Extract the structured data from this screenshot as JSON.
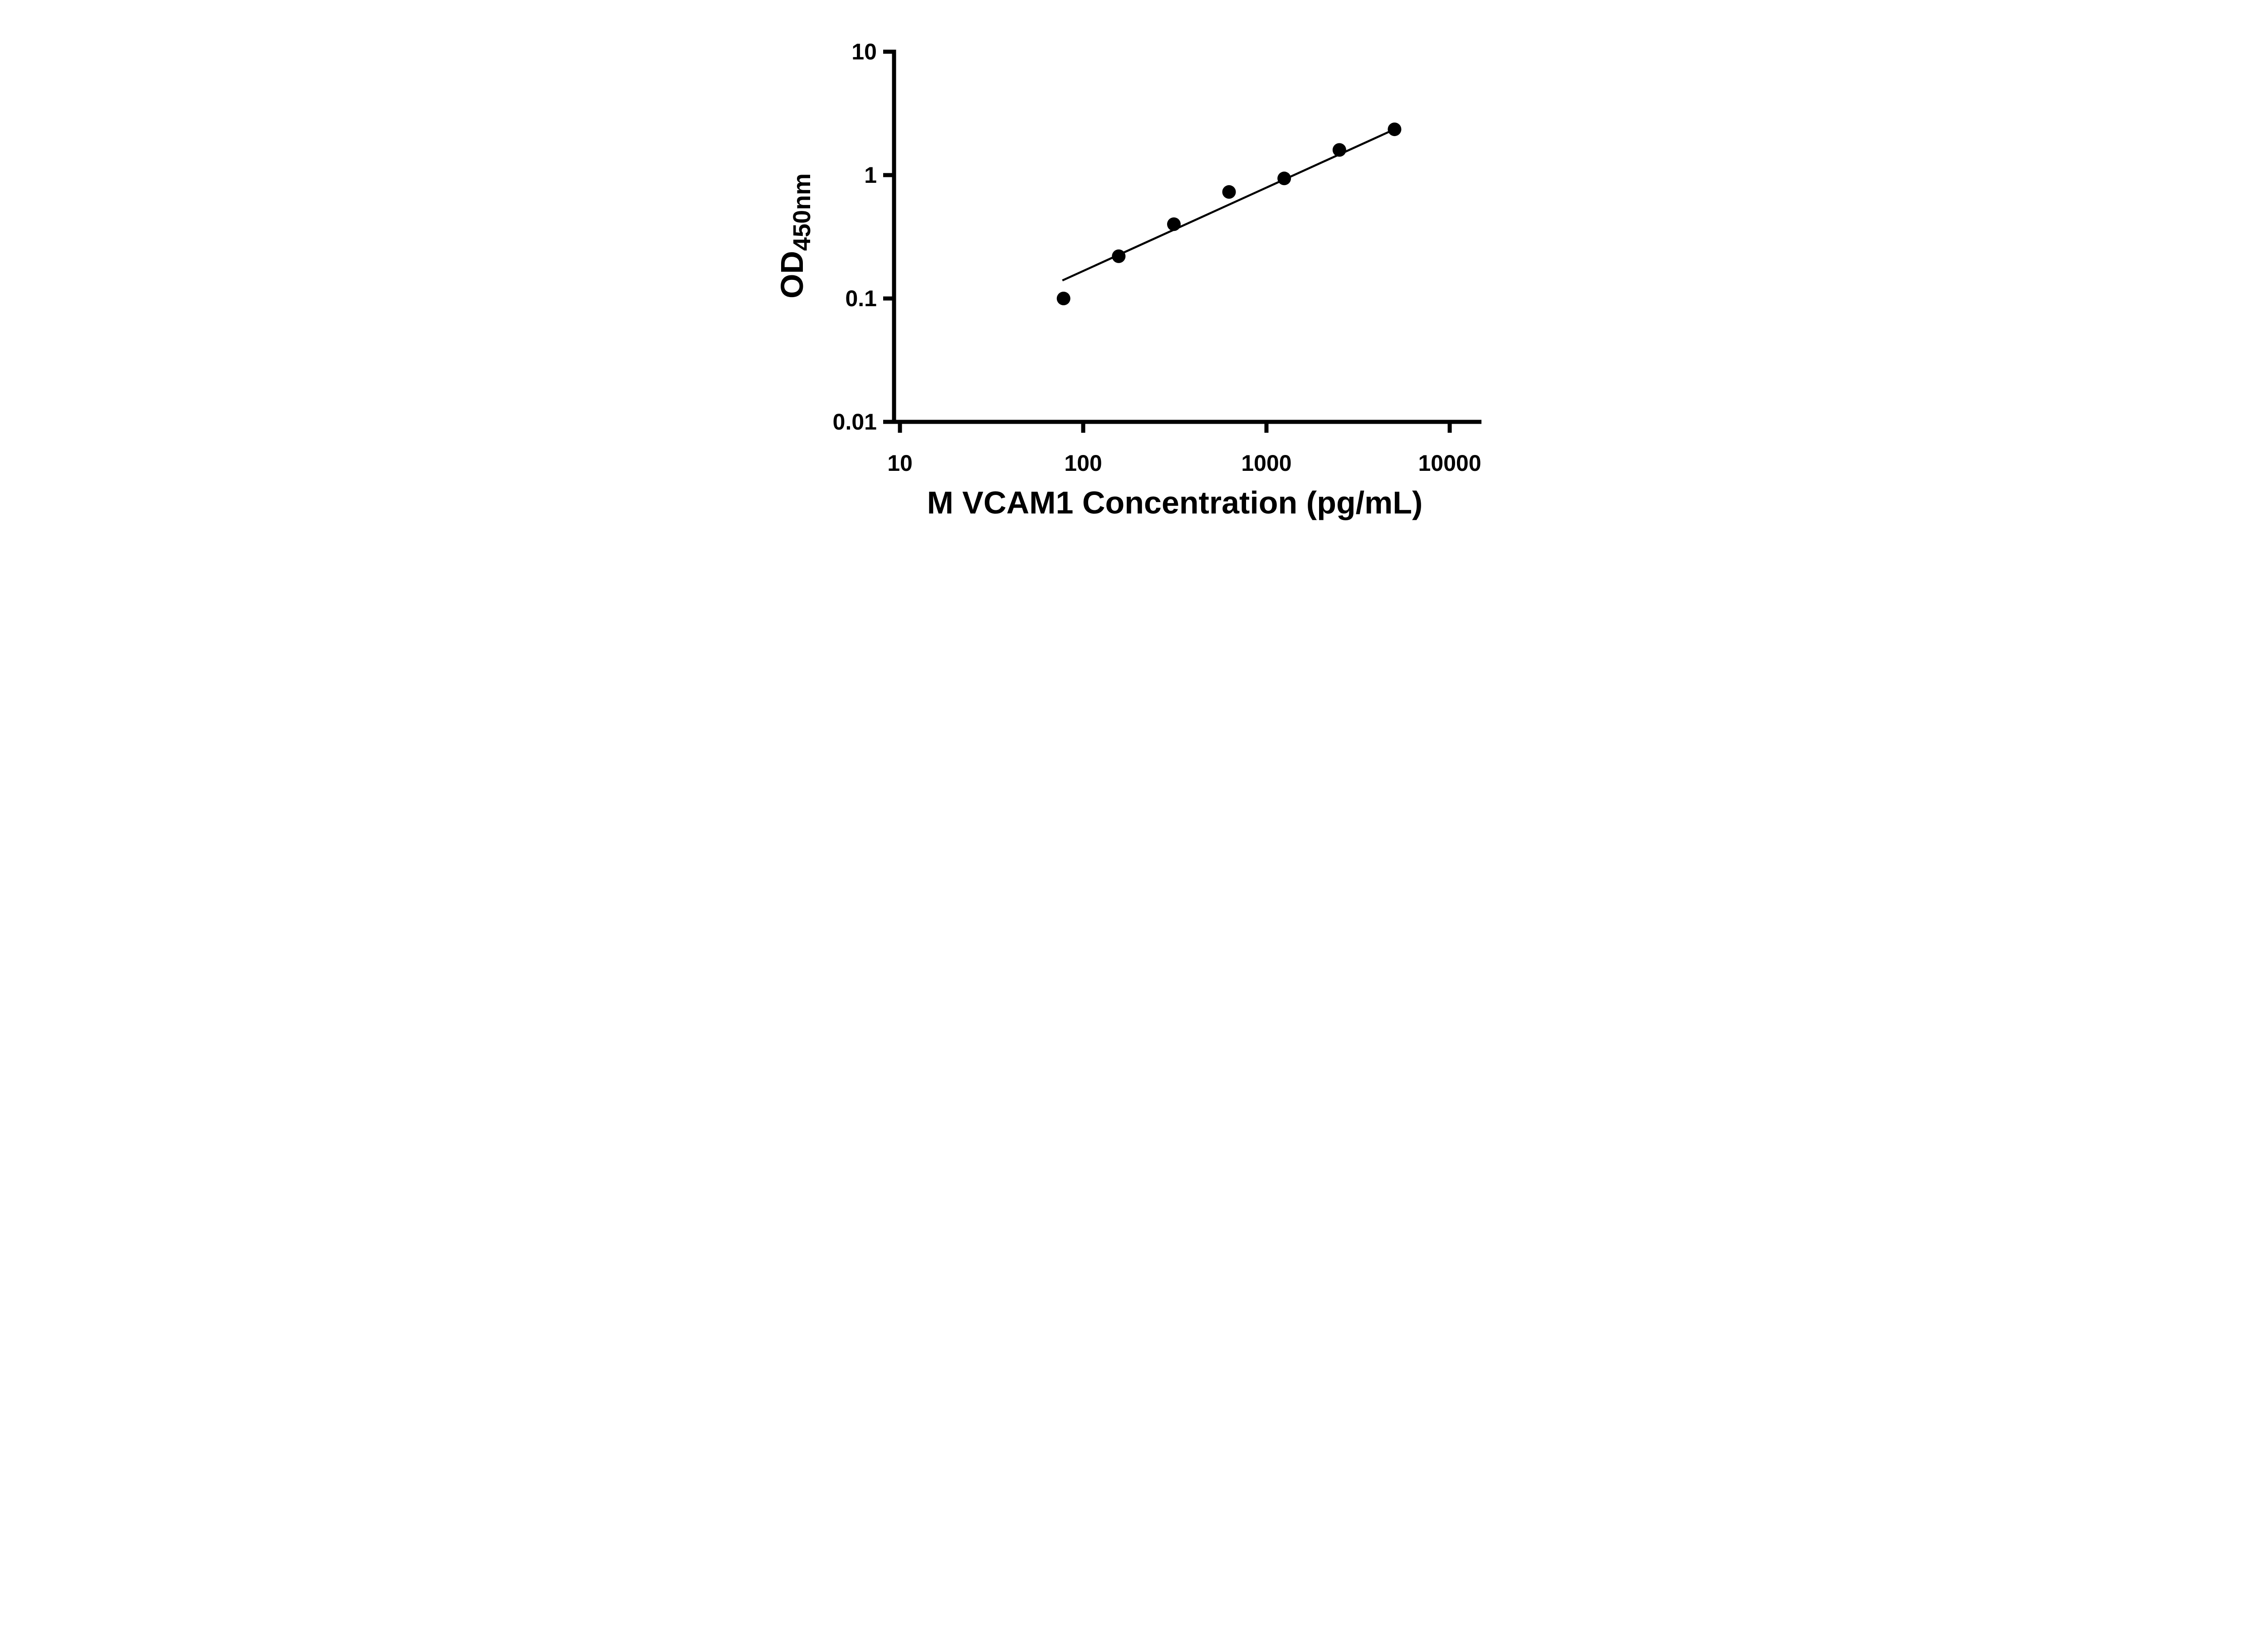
{
  "figure": {
    "background_color": "#ffffff",
    "foreground_color": "#000000"
  },
  "chart_data": {
    "type": "scatter",
    "title": "",
    "xlabel": "M VCAM1 Concentration (pg/mL)",
    "ylabel_main": "OD",
    "ylabel_sub": "450nm",
    "x_scale": "log10",
    "y_scale": "log10",
    "xlim": [
      10,
      10000
    ],
    "ylim": [
      0.01,
      10
    ],
    "x_ticks": [
      10,
      100,
      1000,
      10000
    ],
    "x_tick_labels": [
      "10",
      "100",
      "1000",
      "10000"
    ],
    "y_ticks": [
      0.01,
      0.1,
      1,
      10
    ],
    "y_tick_labels": [
      "0.01",
      "0.1",
      "1",
      "10"
    ],
    "grid": false,
    "legend": "none",
    "marker_color": "#000000",
    "line_color": "#000000",
    "series": [
      {
        "name": "standard-points",
        "kind": "scatter",
        "marker": "filled-circle",
        "points": [
          {
            "x": 78.125,
            "y": 0.1
          },
          {
            "x": 156.25,
            "y": 0.22
          },
          {
            "x": 312.5,
            "y": 0.4
          },
          {
            "x": 625,
            "y": 0.73
          },
          {
            "x": 1250,
            "y": 0.94
          },
          {
            "x": 2500,
            "y": 1.6
          },
          {
            "x": 5000,
            "y": 2.35
          }
        ]
      },
      {
        "name": "fit-line",
        "kind": "line",
        "points": [
          {
            "x": 77,
            "y": 0.14
          },
          {
            "x": 5000,
            "y": 2.35
          }
        ]
      }
    ]
  }
}
